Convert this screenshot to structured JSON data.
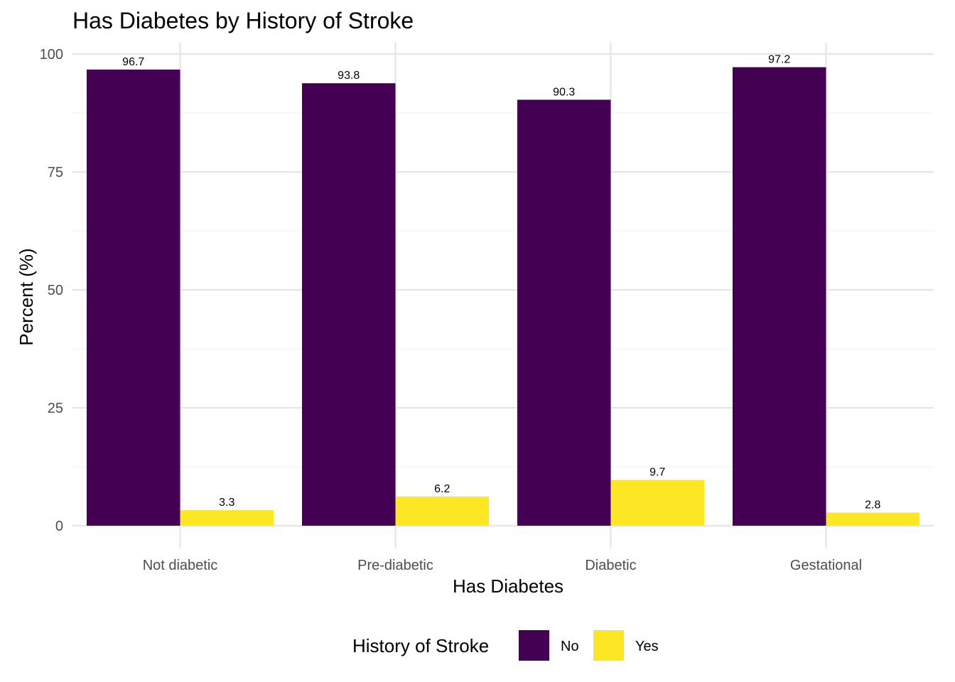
{
  "chart_data": {
    "type": "bar",
    "title": "Has Diabetes by History of Stroke",
    "xlabel": "Has Diabetes",
    "ylabel": "Percent (%)",
    "categories": [
      "Not diabetic",
      "Pre-diabetic",
      "Diabetic",
      "Gestational"
    ],
    "series": [
      {
        "name": "No",
        "color": "#440154",
        "values": [
          96.7,
          93.8,
          90.3,
          97.2
        ],
        "labels": [
          "96.7",
          "93.8",
          "90.3",
          "97.2"
        ]
      },
      {
        "name": "Yes",
        "color": "#FDE725",
        "values": [
          3.3,
          6.2,
          9.7,
          2.8
        ],
        "labels": [
          "3.3",
          "6.2",
          "9.7",
          "2.8"
        ]
      }
    ],
    "ylim": [
      0,
      100
    ],
    "yticks": [
      0,
      25,
      50,
      75,
      100
    ],
    "ytick_labels": [
      "0",
      "25",
      "50",
      "75",
      "100"
    ],
    "grid": true,
    "legend": {
      "title": "History of Stroke",
      "position": "bottom"
    }
  }
}
